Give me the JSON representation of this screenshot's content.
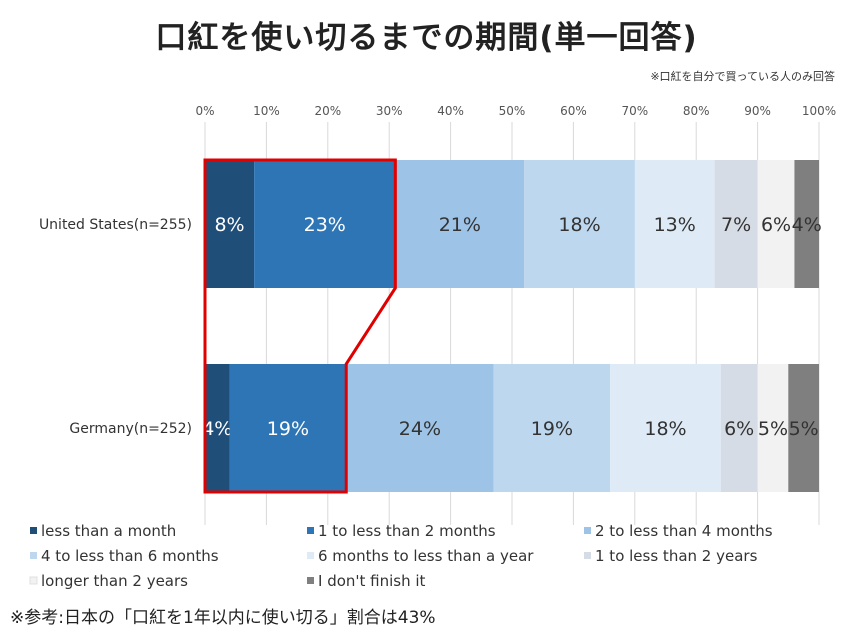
{
  "page": {
    "title": "口紅を使い切るまでの期間(単一回答)",
    "note": "※口紅を自分で買っている人のみ回答",
    "footnote": "※参考:日本の「口紅を1年以内に使い切る」割合は43%"
  },
  "chart_data": {
    "type": "bar",
    "orientation": "horizontal-stacked-100",
    "title": "口紅を使い切るまでの期間(単一回答)",
    "xlim": [
      0,
      100
    ],
    "x_ticks": [
      "0%",
      "10%",
      "20%",
      "30%",
      "40%",
      "50%",
      "60%",
      "70%",
      "80%",
      "90%",
      "100%"
    ],
    "categories": [
      "United States(n=255)",
      "Germany(n=252)"
    ],
    "series": [
      {
        "name": "less than a month",
        "color": "#1f4e79",
        "values": [
          8,
          4
        ],
        "labels": [
          "8%",
          "4%"
        ],
        "text_color": "#ffffff"
      },
      {
        "name": "1 to less than 2 months",
        "color": "#2e75b6",
        "values": [
          23,
          19
        ],
        "labels": [
          "23%",
          "19%"
        ],
        "text_color": "#ffffff"
      },
      {
        "name": "2 to less than 4 months",
        "color": "#9dc3e6",
        "values": [
          21,
          24
        ],
        "labels": [
          "21%",
          "24%"
        ],
        "text_color": "#333333"
      },
      {
        "name": "4 to less than 6 months",
        "color": "#bdd7ee",
        "values": [
          18,
          19
        ],
        "labels": [
          "18%",
          "19%"
        ],
        "text_color": "#333333"
      },
      {
        "name": "6 months to less than a year",
        "color": "#deebf7",
        "values": [
          13,
          18
        ],
        "labels": [
          "13%",
          "18%"
        ],
        "text_color": "#333333"
      },
      {
        "name": "1 to less than 2 years",
        "color": "#d6dce5",
        "values": [
          7,
          6
        ],
        "labels": [
          "7%",
          "6%"
        ],
        "text_color": "#333333"
      },
      {
        "name": "longer than 2 years",
        "color": "#f2f2f2",
        "values": [
          6,
          5
        ],
        "labels": [
          "6%",
          "5%"
        ],
        "text_color": "#333333"
      },
      {
        "name": "I don't finish it",
        "color": "#7f7f7f",
        "values": [
          4,
          5
        ],
        "labels": [
          "4%",
          "5%"
        ],
        "text_color": "#333333"
      }
    ],
    "highlight": {
      "color": "#e00000",
      "series_indices": [
        0,
        1
      ]
    },
    "legend_position": "bottom",
    "grid": true
  }
}
